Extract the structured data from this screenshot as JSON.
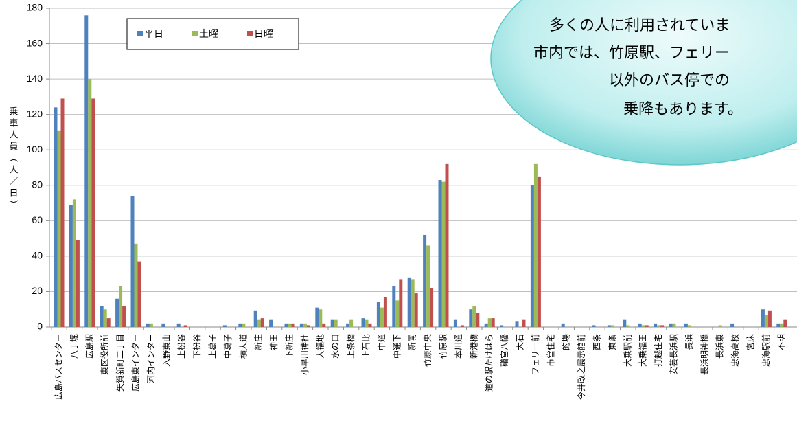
{
  "chart_data": {
    "type": "bar",
    "y_label": "乗車人員（人／日）",
    "categories": [
      "広島バスセンター",
      "八丁堀",
      "広島駅",
      "東区役所前",
      "矢賀新町二丁目",
      "広島東インター",
      "河内インター",
      "入野東山",
      "上枌谷",
      "下枌谷",
      "上葛子",
      "中葛子",
      "横大道",
      "新庄",
      "神田",
      "下新庄",
      "小早川神社",
      "大福地",
      "水の口",
      "上条橋",
      "上石比",
      "中通",
      "中通下",
      "新開",
      "竹原中央",
      "竹原駅",
      "本川通",
      "新港橋",
      "道の駅たけはら",
      "礒宮八幡",
      "大石",
      "フェリー前",
      "市営住宅",
      "的場",
      "今井政之展示館前",
      "西条",
      "東条",
      "大乗駅前",
      "大乗福田",
      "打越住宅",
      "安芸長浜駅",
      "長浜",
      "長浜明神橋",
      "長浜東",
      "忠海高校",
      "宮床",
      "忠海駅前",
      "不明"
    ],
    "series": [
      {
        "name": "平日",
        "color": "#4f81bd",
        "values": [
          124,
          69,
          176,
          12,
          16,
          74,
          2,
          2,
          2,
          0,
          0,
          1,
          2,
          9,
          4,
          2,
          2,
          11,
          4,
          2,
          5,
          14,
          23,
          28,
          52,
          83,
          4,
          10,
          2,
          1,
          3,
          80,
          0,
          2,
          0,
          1,
          1,
          4,
          2,
          2,
          2,
          2,
          0,
          0,
          2,
          0,
          10,
          2
        ]
      },
      {
        "name": "土曜",
        "color": "#9bbb59",
        "values": [
          111,
          72,
          140,
          10,
          23,
          47,
          2,
          0,
          0,
          0,
          0,
          0,
          2,
          4,
          0,
          2,
          2,
          10,
          4,
          4,
          4,
          11,
          15,
          27,
          46,
          82,
          0,
          12,
          5,
          0,
          0,
          92,
          0,
          0,
          0,
          0,
          1,
          1,
          1,
          1,
          2,
          1,
          0,
          1,
          0,
          0,
          7,
          2
        ]
      },
      {
        "name": "日曜",
        "color": "#c0504d",
        "values": [
          129,
          49,
          129,
          5,
          12,
          37,
          0,
          0,
          1,
          0,
          0,
          0,
          0,
          5,
          0,
          2,
          1,
          2,
          0,
          0,
          2,
          17,
          27,
          19,
          22,
          92,
          1,
          8,
          5,
          0,
          4,
          85,
          0,
          0,
          0,
          0,
          0,
          0,
          1,
          1,
          0,
          0,
          0,
          0,
          0,
          0,
          9,
          4
        ]
      }
    ],
    "ylim": [
      0,
      180
    ],
    "yticks": [
      0,
      20,
      40,
      60,
      80,
      100,
      120,
      140,
      160,
      180
    ],
    "grid": true,
    "annotation": [
      "多くの人に利用されていま",
      "市内では、竹原駅、フェリー",
      "以外のバス停での",
      "乗降もあります。"
    ]
  }
}
